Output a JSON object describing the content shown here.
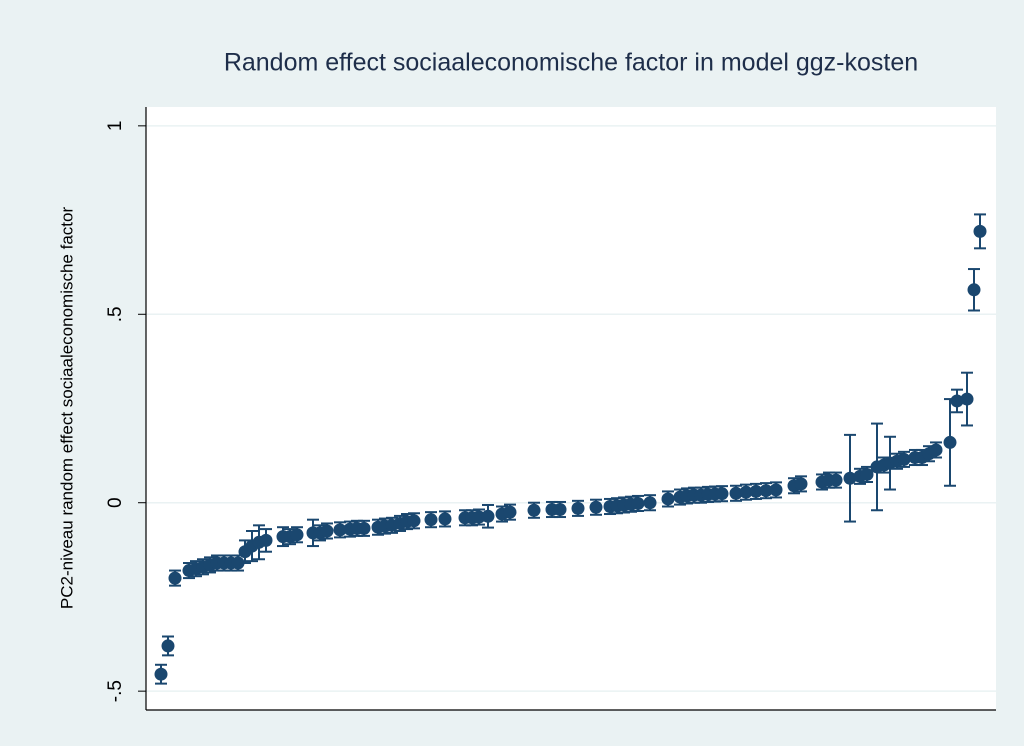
{
  "chart_data": {
    "type": "errorbar",
    "title": "Random effect sociaaleconomische factor in model ggz-kosten",
    "y_label": "PC2-niveau random effect sociaaleconomische factor",
    "color": "#1a476f",
    "x": [
      15,
      22,
      29,
      43,
      50,
      57,
      64,
      71,
      78,
      85,
      92,
      99,
      106,
      113,
      120,
      137,
      144,
      151,
      167,
      174,
      181,
      194,
      204,
      211,
      218,
      232,
      239,
      246,
      254,
      261,
      268,
      285,
      299,
      319,
      326,
      333,
      342,
      356,
      364,
      388,
      406,
      414,
      432,
      450,
      464,
      471,
      478,
      485,
      492,
      504,
      522,
      534,
      541,
      548,
      555,
      562,
      569,
      576,
      590,
      600,
      610,
      620,
      630,
      648,
      655,
      676,
      683,
      690,
      704,
      714,
      721,
      731,
      738,
      744,
      751,
      758,
      769,
      776,
      783,
      790,
      804,
      811,
      821,
      828,
      834
    ],
    "values": [
      -0.455,
      -0.38,
      -0.2,
      -0.18,
      -0.175,
      -0.17,
      -0.165,
      -0.16,
      -0.16,
      -0.16,
      -0.16,
      -0.13,
      -0.115,
      -0.105,
      -0.1,
      -0.09,
      -0.09,
      -0.085,
      -0.08,
      -0.08,
      -0.075,
      -0.072,
      -0.07,
      -0.068,
      -0.068,
      -0.065,
      -0.062,
      -0.06,
      -0.055,
      -0.05,
      -0.048,
      -0.045,
      -0.043,
      -0.04,
      -0.04,
      -0.038,
      -0.036,
      -0.03,
      -0.025,
      -0.02,
      -0.018,
      -0.018,
      -0.015,
      -0.012,
      -0.01,
      -0.008,
      -0.006,
      -0.004,
      -0.002,
      0.0,
      0.01,
      0.015,
      0.018,
      0.02,
      0.02,
      0.022,
      0.023,
      0.024,
      0.025,
      0.028,
      0.03,
      0.032,
      0.034,
      0.045,
      0.05,
      0.055,
      0.06,
      0.06,
      0.065,
      0.07,
      0.075,
      0.095,
      0.1,
      0.105,
      0.11,
      0.115,
      0.12,
      0.12,
      0.13,
      0.14,
      0.16,
      0.27,
      0.275,
      0.565,
      0.72
    ],
    "errors": [
      0.025,
      0.025,
      0.02,
      0.02,
      0.02,
      0.02,
      0.02,
      0.02,
      0.02,
      0.02,
      0.02,
      0.03,
      0.04,
      0.045,
      0.03,
      0.025,
      0.02,
      0.02,
      0.035,
      0.02,
      0.02,
      0.02,
      0.02,
      0.02,
      0.02,
      0.02,
      0.02,
      0.02,
      0.02,
      0.02,
      0.02,
      0.02,
      0.02,
      0.02,
      0.02,
      0.02,
      0.03,
      0.02,
      0.02,
      0.02,
      0.02,
      0.02,
      0.02,
      0.02,
      0.02,
      0.02,
      0.02,
      0.02,
      0.02,
      0.02,
      0.02,
      0.02,
      0.02,
      0.02,
      0.02,
      0.02,
      0.02,
      0.02,
      0.02,
      0.02,
      0.02,
      0.02,
      0.02,
      0.02,
      0.02,
      0.02,
      0.02,
      0.02,
      0.115,
      0.02,
      0.02,
      0.115,
      0.02,
      0.07,
      0.02,
      0.02,
      0.02,
      0.02,
      0.02,
      0.02,
      0.115,
      0.03,
      0.07,
      0.055,
      0.045
    ],
    "xlim": [
      0,
      850
    ],
    "ylim": [
      -0.55,
      1.05
    ],
    "yticks": [
      {
        "value": -0.5,
        "label": "-.5"
      },
      0,
      {
        "value": 0.5,
        "label": ".5"
      },
      1
    ],
    "grid": true
  }
}
